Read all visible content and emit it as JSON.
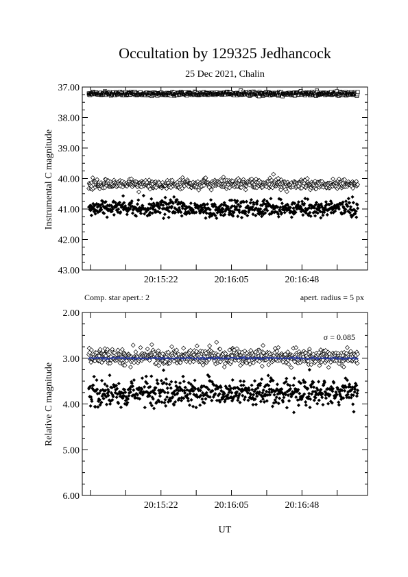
{
  "title": "Occultation by 129325 Jedhancock",
  "subtitle": "25 Dec 2021, Chalin",
  "chart_data": [
    {
      "type": "scatter",
      "ylabel": "Instrumental C magnitude",
      "xlabel": "",
      "x_range": [
        "20:14:34",
        "20:17:28"
      ],
      "xticks": [
        "20:15:22",
        "20:16:05",
        "20:16:48"
      ],
      "ylim": [
        43.0,
        37.0
      ],
      "y_inverted": true,
      "yticks": [
        "37.00",
        "38.00",
        "39.00",
        "40.00",
        "41.00",
        "42.00",
        "43.00"
      ],
      "grid": false,
      "series": [
        {
          "marker": "open-square",
          "mean": 37.22,
          "scatter": 0.03,
          "npoints": 620
        },
        {
          "marker": "open-diamond",
          "mean": 40.18,
          "scatter": 0.08,
          "npoints": 620
        },
        {
          "marker": "filled-diamond",
          "mean": 40.97,
          "scatter": 0.14,
          "npoints": 620
        }
      ],
      "annotations": {
        "left": "Comp. star apert.: 2",
        "right": "apert. radius = 5 px"
      }
    },
    {
      "type": "scatter",
      "ylabel": "Relative C magnitude",
      "xlabel": "UT",
      "x_range": [
        "20:14:34",
        "20:17:28"
      ],
      "xticks": [
        "20:15:22",
        "20:16:05",
        "20:16:48"
      ],
      "ylim": [
        6.0,
        2.0
      ],
      "y_inverted": true,
      "yticks": [
        "2.00",
        "3.00",
        "4.00",
        "5.00",
        "6.00"
      ],
      "grid": false,
      "series": [
        {
          "marker": "open-diamond",
          "mean": 2.97,
          "scatter": 0.085,
          "npoints": 620
        },
        {
          "marker": "blue-dot",
          "mean": 3.0,
          "scatter": 0.01,
          "npoints": 620
        },
        {
          "marker": "filled-diamond",
          "mean": 3.76,
          "scatter": 0.15,
          "npoints": 620
        }
      ],
      "annotations": {
        "sigma": "σ = 0.085"
      },
      "colors": {
        "mean_line": "#2a3a9a"
      }
    }
  ]
}
